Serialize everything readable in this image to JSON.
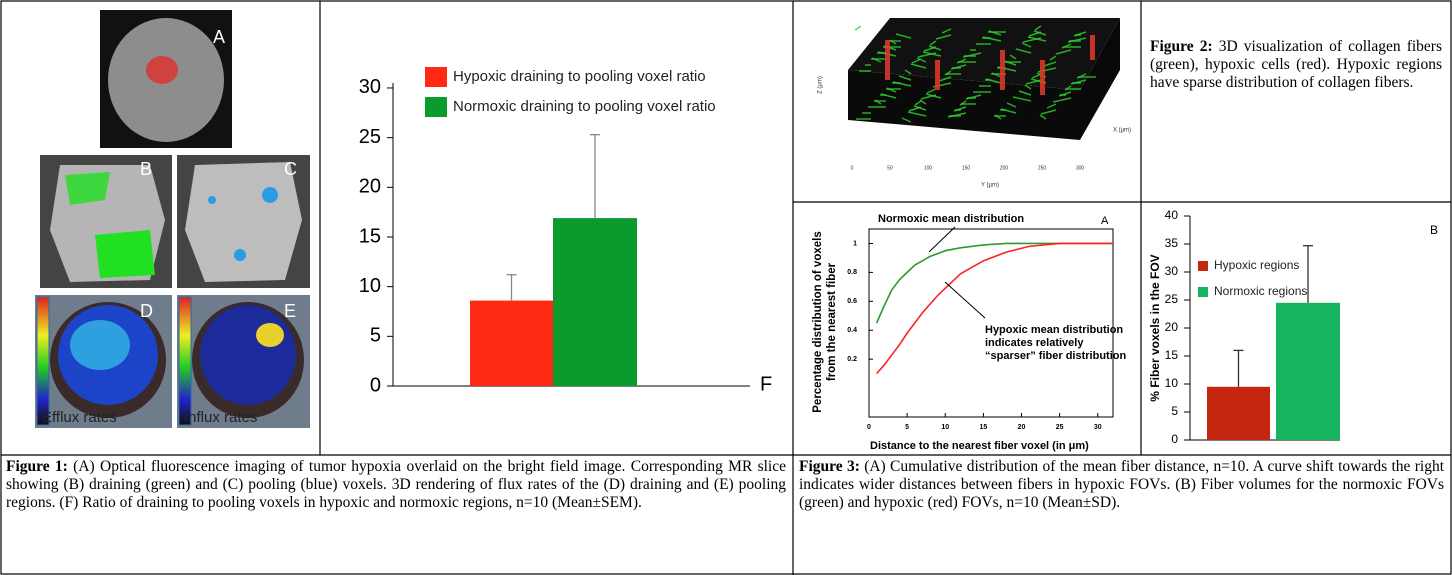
{
  "figure1": {
    "panel_labels": [
      "A",
      "B",
      "C",
      "D",
      "E"
    ],
    "scale_labels": [
      "Efflux rates",
      "Influx rates"
    ],
    "caption": {
      "label": "Figure 1:",
      "text": "(A) Optical fluorescence imaging of tumor hypoxia overlaid on the bright field image.  Corresponding MR slice showing (B) draining (green) and (C) pooling (blue) voxels.  3D rendering of flux rates of the (D) draining and (E) pooling regions.  (F) Ratio of draining to pooling voxels in hypoxic and normoxic regions, n=10 (Mean±SEM)."
    }
  },
  "figure2": {
    "axis_labels": [
      "Z (µm)",
      "Y (µm)",
      "X (µm)"
    ],
    "y_ticks": [
      "0",
      "50",
      "100",
      "150",
      "200",
      "250",
      "300"
    ],
    "caption": {
      "label": "Figure 2:",
      "text": "3D visualization of collagen fibers (green), hypoxic cells (red).  Hypoxic regions have sparse distribution of collagen fibers."
    }
  },
  "figure3": {
    "caption": {
      "label": "Figure 3:",
      "text": "(A) Cumulative distribution of the mean fiber distance, n=10.  A curve shift towards the right indicates wider distances between fibers in hypoxic FOVs.  (B) Fiber volumes for the normoxic FOVs (green) and hypoxic (red) FOVs, n=10 (Mean±SD)."
    }
  },
  "chart_data": [
    {
      "type": "bar",
      "panel_label": "F",
      "categories": [
        null
      ],
      "series": [
        {
          "name": "Hypoxic draining to pooling voxel ratio",
          "color": "#ff2a14",
          "values": [
            8.6
          ],
          "errors": [
            2.6
          ]
        },
        {
          "name": "Normoxic draining to pooling voxel ratio",
          "color": "#0b9a2c",
          "values": [
            16.9
          ],
          "errors": [
            8.4
          ]
        }
      ],
      "ylim": [
        0,
        30.5
      ],
      "yticks": [
        0,
        5,
        10,
        15,
        20,
        25,
        30
      ],
      "legend": "upper left"
    },
    {
      "type": "line",
      "panel_label": "A",
      "x": [
        1,
        2,
        3,
        4,
        5,
        6,
        7,
        8,
        9,
        10,
        12,
        15,
        18,
        21,
        25,
        32
      ],
      "series": [
        {
          "color": "#2e9a2e",
          "values": [
            0.45,
            0.57,
            0.68,
            0.75,
            0.8,
            0.85,
            0.88,
            0.91,
            0.93,
            0.95,
            0.97,
            0.99,
            1,
            1,
            1,
            1
          ]
        },
        {
          "color": "#ff2222",
          "values": [
            0.1,
            0.16,
            0.23,
            0.3,
            0.38,
            0.45,
            0.52,
            0.58,
            0.64,
            0.69,
            0.79,
            0.88,
            0.94,
            0.98,
            1,
            1
          ]
        }
      ],
      "xlim": [
        0,
        32
      ],
      "xticks": [
        0,
        5,
        10,
        15,
        20,
        25,
        30
      ],
      "ylim": [
        -0.2,
        1.1
      ],
      "yticks": [
        0.2,
        0.4,
        0.6,
        0.8,
        1
      ],
      "xlabel": "Distance to the nearest fiber voxel (in μm)",
      "ylabel": [
        "Percentage distribution of voxels",
        "from the nearest fiber"
      ],
      "annotations": [
        "Normoxic mean distribution",
        [
          "Hypoxic mean distribution",
          "indicates relatively",
          "“sparser” fiber distribution"
        ]
      ]
    },
    {
      "type": "bar",
      "panel_label": "B",
      "categories": [
        null
      ],
      "series": [
        {
          "name": "Hypoxic regions",
          "color": "#c4260f",
          "values": [
            9.5
          ],
          "errors": [
            6.5
          ]
        },
        {
          "name": "Normoxic regions",
          "color": "#17b35e",
          "values": [
            24.5
          ],
          "errors": [
            10.2
          ]
        }
      ],
      "ylim": [
        0,
        40
      ],
      "yticks": [
        0,
        5,
        10,
        15,
        20,
        25,
        30,
        35,
        40
      ],
      "ylabel": "% Fiber voxels in the FOV",
      "legend": "upper left"
    }
  ]
}
